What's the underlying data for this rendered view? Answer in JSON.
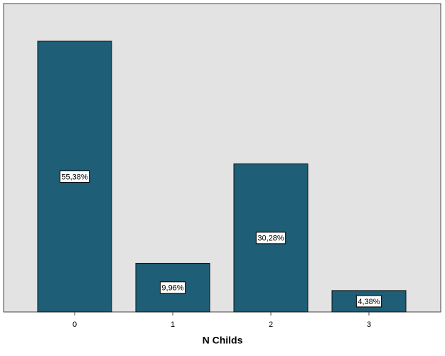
{
  "chart_data": {
    "type": "bar",
    "x_label": "N Childs",
    "categories": [
      "0",
      "1",
      "2",
      "3"
    ],
    "values": [
      55.38,
      9.96,
      30.28,
      4.38
    ],
    "value_labels": [
      "55,38%",
      "9,96%",
      "30,28%",
      "4,38%"
    ],
    "color": "#1e5e76"
  }
}
